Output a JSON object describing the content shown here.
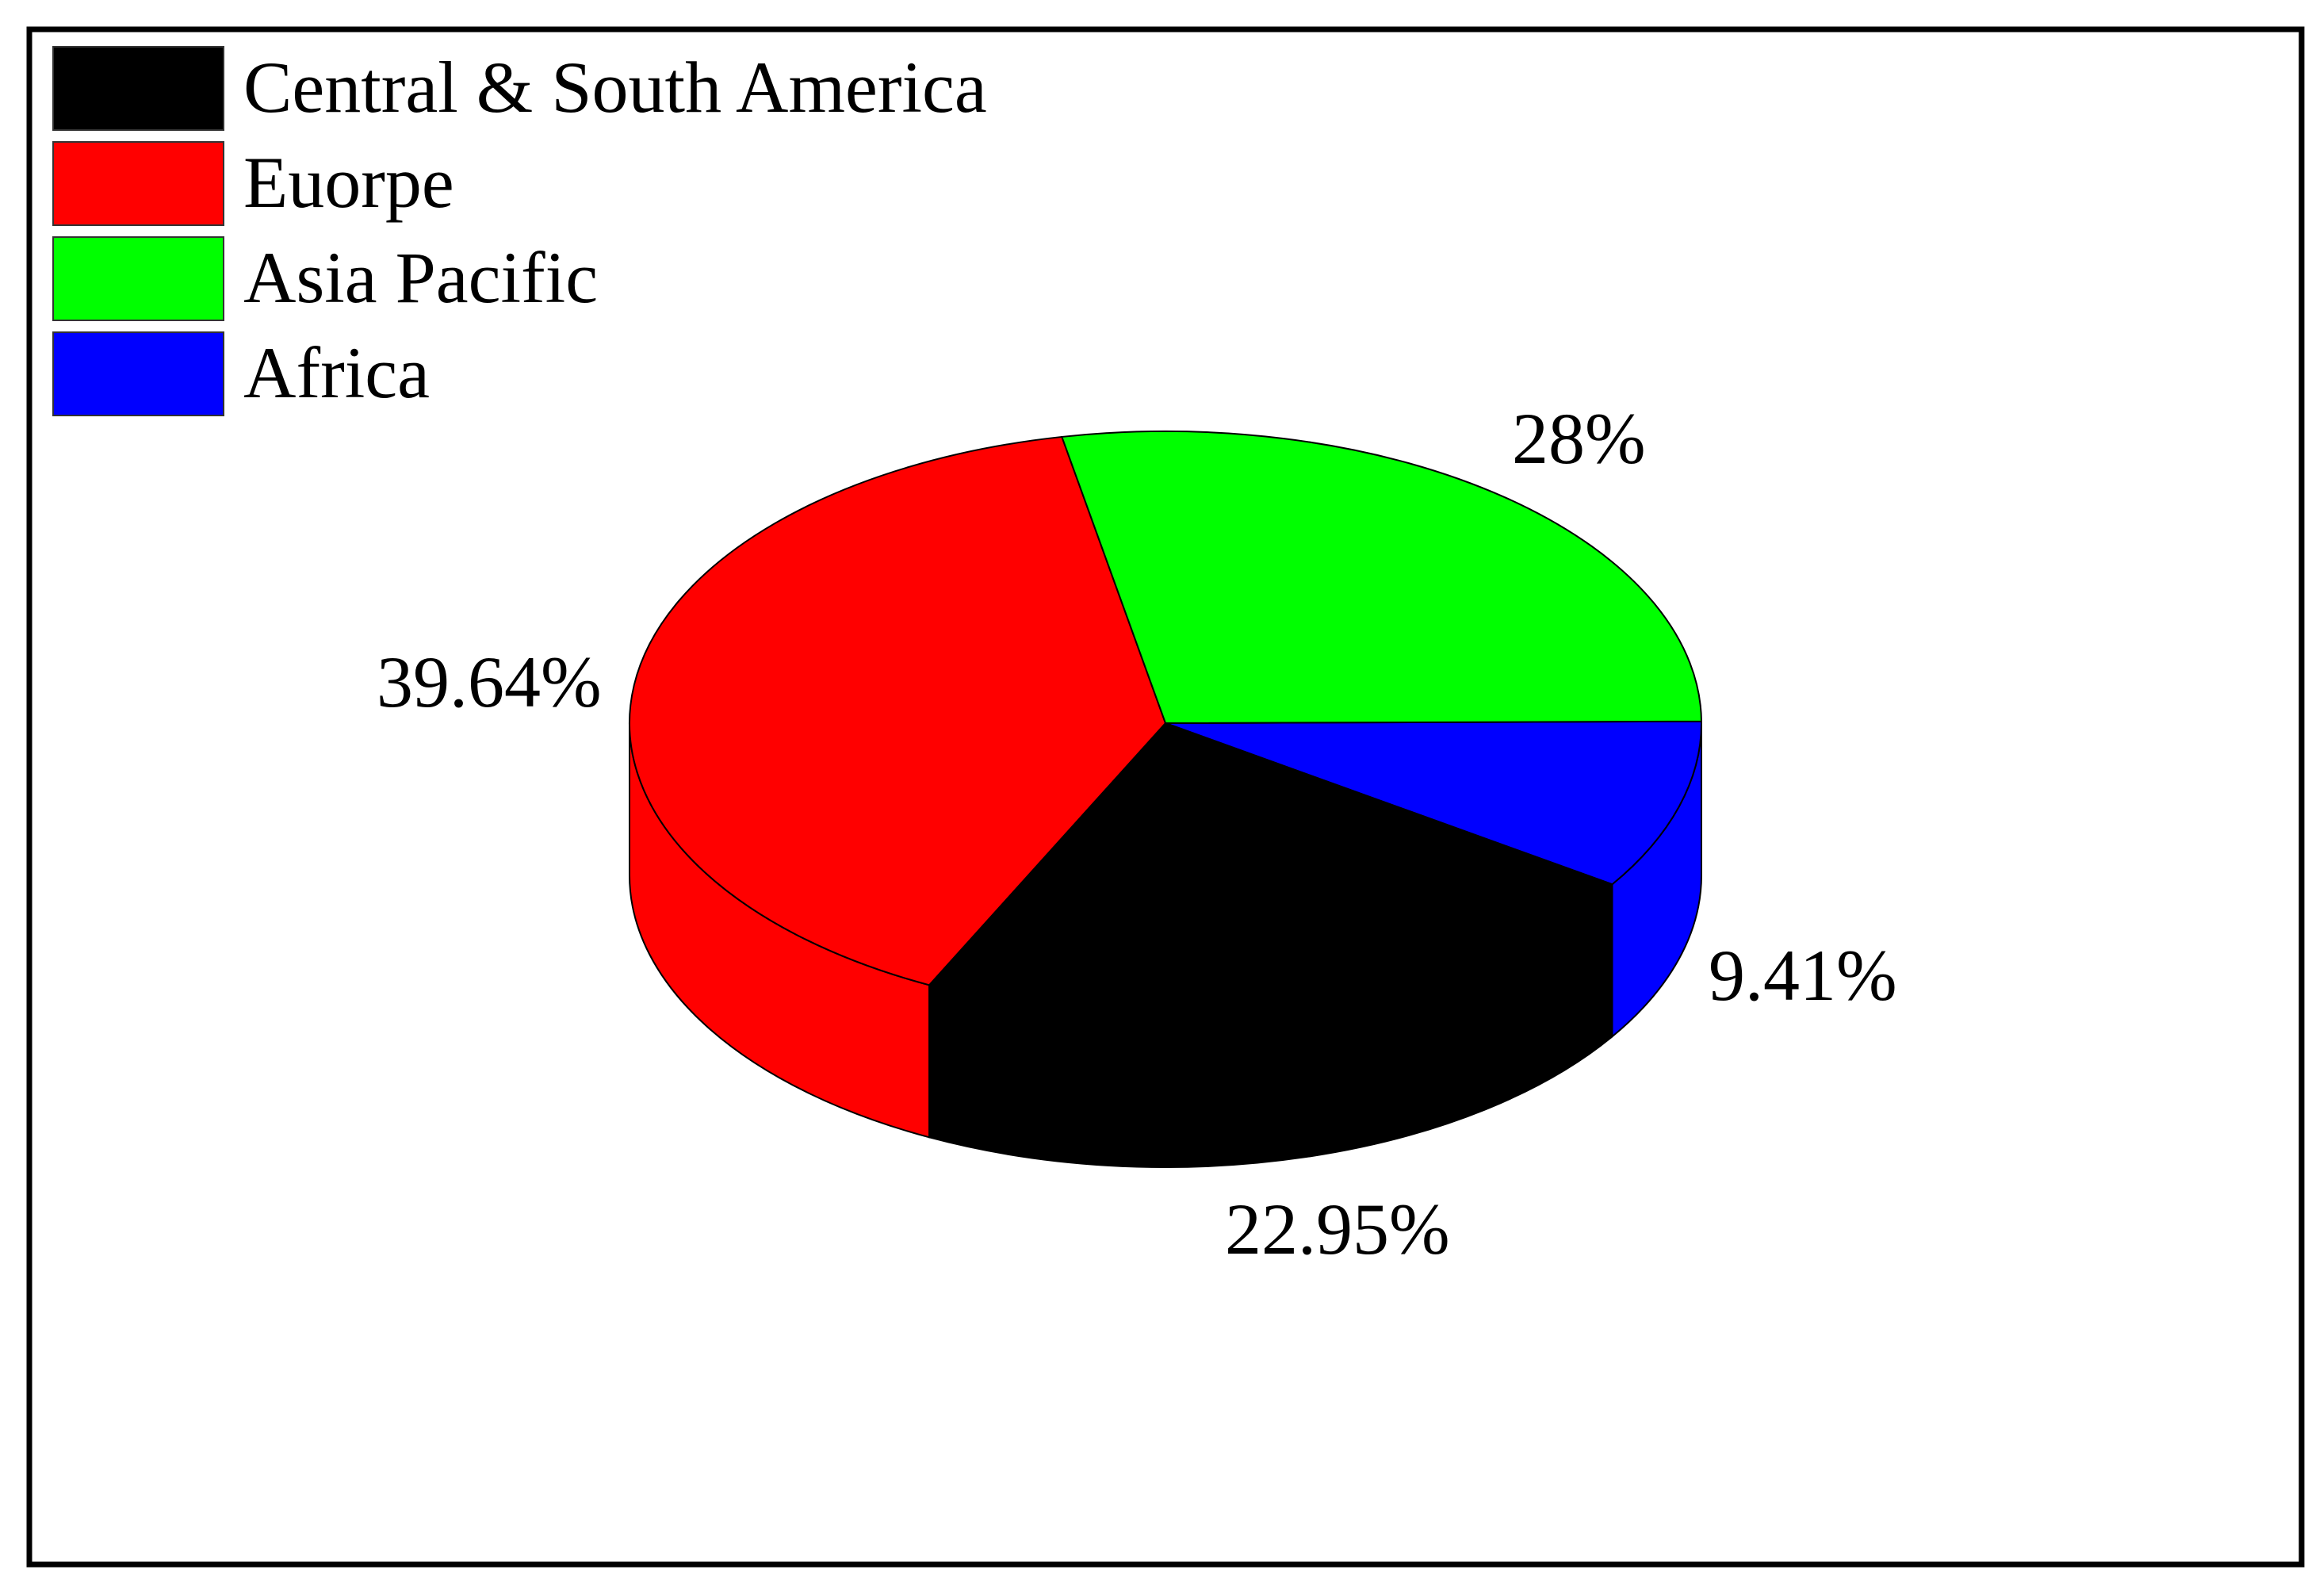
{
  "chart_data": {
    "type": "pie",
    "style": "3d",
    "title": "",
    "legend_position": "top-left",
    "categories": [
      "Central & South America",
      "Euorpe",
      "Asia Pacific",
      "Africa"
    ],
    "values": [
      22.95,
      39.64,
      28,
      9.41
    ],
    "labels": [
      "22.95%",
      "39.64%",
      "28%",
      "9.41%"
    ],
    "colors": [
      "#000000",
      "#ff0000",
      "#00ff00",
      "#0000ff"
    ]
  }
}
